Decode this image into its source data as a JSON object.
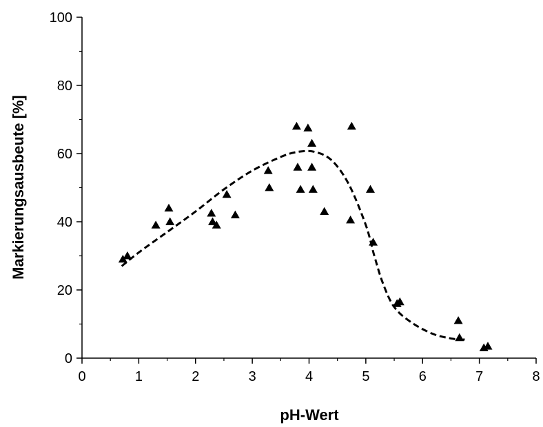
{
  "chart_data": {
    "type": "scatter",
    "title": "",
    "xlabel": "pH-Wert",
    "ylabel": "Markierungsausbeute [%]",
    "xlim": [
      0,
      8
    ],
    "ylim": [
      0,
      100
    ],
    "x_ticks": [
      "0",
      "1",
      "2",
      "3",
      "4",
      "5",
      "6",
      "7",
      "8"
    ],
    "y_ticks": [
      "0",
      "20",
      "40",
      "60",
      "80",
      "100"
    ],
    "grid": false,
    "legend": "none",
    "colors": {
      "marker": "#000000",
      "trend": "#000000",
      "axis": "#000000"
    },
    "series": [
      {
        "marker": "triangle",
        "x": [
          0.72,
          0.8,
          1.3,
          1.53,
          1.55,
          2.28,
          2.3,
          2.37,
          2.55,
          2.7,
          3.28,
          3.3,
          3.78,
          3.8,
          3.85,
          3.98,
          4.05,
          4.05,
          4.07,
          4.27,
          4.73,
          4.75,
          5.08,
          5.13,
          5.55,
          5.6,
          6.63,
          6.65,
          7.08,
          7.15
        ],
        "y": [
          29,
          30,
          39,
          44,
          40,
          42.5,
          40,
          39,
          48,
          42,
          55,
          50,
          68,
          56,
          49.5,
          67.5,
          56,
          63,
          49.5,
          43,
          40.5,
          68,
          49.5,
          34,
          16,
          16.5,
          11,
          6,
          3,
          3.5
        ]
      },
      {
        "style": "dashed-line",
        "x": [
          0.7,
          1.0,
          1.5,
          2.0,
          2.5,
          3.0,
          3.5,
          3.8,
          4.1,
          4.4,
          4.7,
          5.0,
          5.15,
          5.3,
          5.5,
          5.8,
          6.2,
          6.6,
          6.75
        ],
        "y": [
          27,
          31,
          37,
          43,
          49.5,
          55,
          59,
          60.5,
          60.5,
          58,
          51,
          39,
          30,
          22,
          15,
          10.5,
          7,
          5.5,
          5.5
        ]
      }
    ]
  }
}
